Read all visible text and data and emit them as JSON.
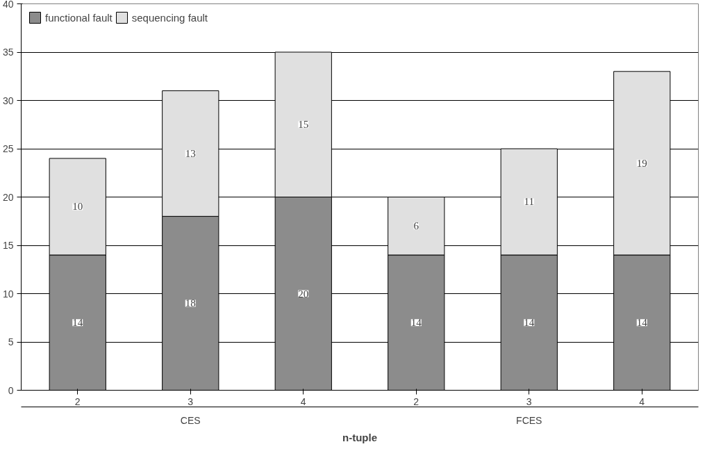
{
  "chart_data": {
    "type": "bar",
    "stacked": true,
    "categories": [
      "2",
      "3",
      "4",
      "2",
      "3",
      "4"
    ],
    "xlabel": "n-tuple",
    "annotations": [
      "CES",
      "FCES"
    ],
    "series": [
      {
        "name": "functional fault",
        "color": "#8c8c8c",
        "values": [
          14,
          18,
          20,
          14,
          14,
          14
        ]
      },
      {
        "name": "sequencing fault",
        "color": "#e0e0e0",
        "values": [
          10,
          13,
          15,
          6,
          11,
          19
        ]
      }
    ],
    "ylim": [
      0,
      40
    ],
    "yticks": [
      0,
      5,
      10,
      15,
      20,
      25,
      30,
      35,
      40
    ],
    "grid": "y",
    "legend": "top left",
    "data_labels": true
  }
}
